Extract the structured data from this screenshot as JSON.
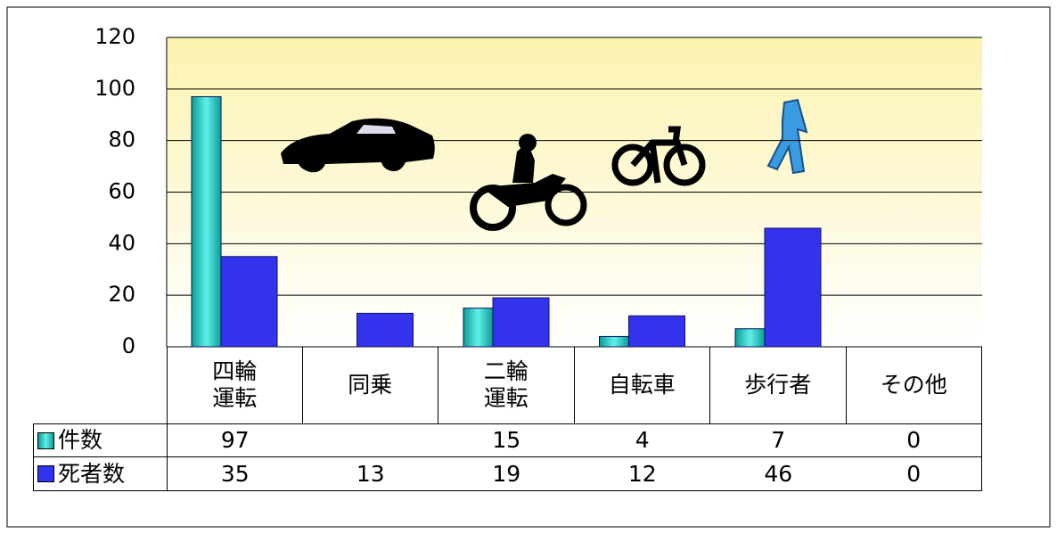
{
  "chart_data": {
    "type": "bar",
    "categories": [
      "四輪\n運転",
      "同乗",
      "二輪\n運転",
      "自転車",
      "歩行者",
      "その他"
    ],
    "series": [
      {
        "name": "件数",
        "color": "#1fd0c8",
        "values": [
          97,
          null,
          15,
          4,
          7,
          0
        ]
      },
      {
        "name": "死者数",
        "color": "#3333ee",
        "values": [
          35,
          13,
          19,
          12,
          46,
          0
        ]
      }
    ],
    "ylim": [
      0,
      120
    ],
    "yticks": [
      0,
      20,
      40,
      60,
      80,
      100,
      120
    ],
    "grid": true
  }
}
